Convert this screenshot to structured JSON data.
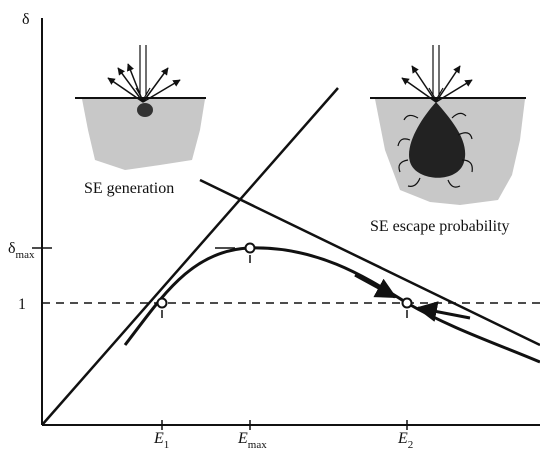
{
  "y_axis_label": "δ",
  "y_labels": [
    {
      "main": "δ",
      "sub": "max"
    },
    {
      "main": "1"
    }
  ],
  "x_labels": [
    {
      "main": "E",
      "sub": "1"
    },
    {
      "main": "E",
      "sub": "max"
    },
    {
      "main": "E",
      "sub": "2"
    }
  ],
  "insets": [
    {
      "caption": "SE generation"
    },
    {
      "caption": "SE escape probability"
    }
  ]
}
